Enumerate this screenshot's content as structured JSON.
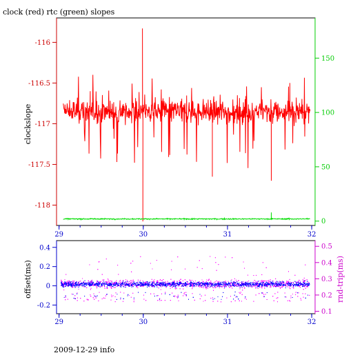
{
  "chart_data": [
    {
      "type": "line",
      "title": "clock (red) rtc (green) slopes",
      "ylabel": "clockslope",
      "xlabel": "",
      "xlim": [
        28.97,
        32.04
      ],
      "x_ticks": [
        "29",
        "30",
        "31",
        "32"
      ],
      "ylim_left": [
        -118.25,
        -115.7
      ],
      "y_ticks_left": [
        "-116",
        "-116.5",
        "-117",
        "-117.5",
        "-118"
      ],
      "ylim_right": [
        -4,
        187
      ],
      "y_ticks_right": [
        "0",
        "50",
        "100",
        "150"
      ],
      "grid": false,
      "series": [
        {
          "name": "clock",
          "color": "#ff0000",
          "axis": "left",
          "x_start": 29.05,
          "x_end": 31.98,
          "baseline": -116.85,
          "noise": 0.32,
          "spikes": [
            {
              "x": 29.99,
              "y": -115.83
            },
            {
              "x": 29.995,
              "y": -118.2
            },
            {
              "x": 29.37,
              "y": -116.6
            },
            {
              "x": 31.52,
              "y": -117.7
            },
            {
              "x": 30.82,
              "y": -117.65
            },
            {
              "x": 31.74,
              "y": -116.5
            }
          ]
        },
        {
          "name": "rtc",
          "color": "#00dd00",
          "axis": "right",
          "x_start": 29.05,
          "x_end": 31.98,
          "baseline": 2,
          "noise": 0.6,
          "spikes": [
            {
              "x": 31.52,
              "y": 8
            }
          ]
        }
      ]
    },
    {
      "type": "scatter",
      "title": "",
      "ylabel_left": "offset(ms)",
      "ylabel_right": "rnd-trip(ms)",
      "xlim": [
        28.97,
        32.04
      ],
      "x_ticks": [
        "29",
        "30",
        "31",
        "32"
      ],
      "ylim_left": [
        -0.29,
        0.47
      ],
      "y_ticks_left": [
        "0.4",
        "0.2",
        "0",
        "-0.2"
      ],
      "ylim_right": [
        0.085,
        0.535
      ],
      "y_ticks_right": [
        "0.5",
        "0.4",
        "0.3",
        "0.2",
        "0.1"
      ],
      "grid": false,
      "series": [
        {
          "name": "offset",
          "color": "#0000ff",
          "axis": "left",
          "center": 0.02,
          "spread": 0.03
        },
        {
          "name": "rnd-trip",
          "color": "#ff00ff",
          "axis": "right",
          "center": 0.27,
          "spread": 0.03
        }
      ]
    }
  ],
  "footer": "2009-12-29 info",
  "colors": {
    "left_axis_top": "#cc0000",
    "right_axis_top": "#00cc00",
    "left_axis_bottom": "#0000cc",
    "right_axis_bottom": "#cc00cc",
    "x_axis": "#0000cc"
  }
}
